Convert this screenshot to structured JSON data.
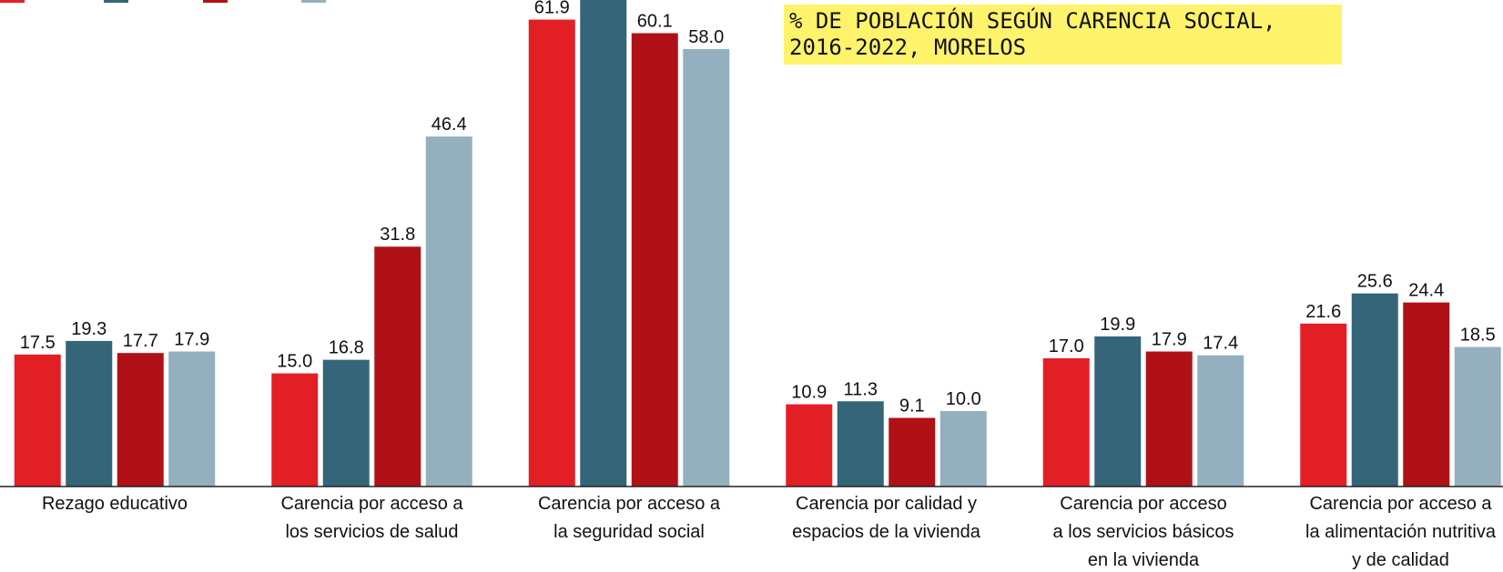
{
  "chart_data": {
    "type": "bar",
    "title": "% DE POBLACIÓN SEGÚN CARENCIA SOCIAL, 2016-2022, MORELOS",
    "categories": [
      [
        "Rezago educativo"
      ],
      [
        "Carencia por acceso a",
        "los servicios de salud"
      ],
      [
        "Carencia por acceso a",
        "la seguridad social"
      ],
      [
        "Carencia por calidad y",
        "espacios de la vivienda"
      ],
      [
        "Carencia por acceso",
        "a los servicios básicos",
        "en la vivienda"
      ],
      [
        "Carencia por acceso a",
        "la alimentación nutritiva",
        "y de calidad"
      ]
    ],
    "series": [
      {
        "color": "#e31f26",
        "values": [
          17.5,
          15,
          61.9,
          10.9,
          17,
          21.6
        ],
        "value_labels": [
          "17.5",
          "15.0",
          "61.9",
          "10.9",
          "17.0",
          "21.6"
        ]
      },
      {
        "color": "#346578",
        "values": [
          19.3,
          16.8,
          66,
          11.3,
          19.9,
          25.6
        ],
        "value_labels": [
          "19.3",
          "16.8",
          null,
          "11.3",
          "19.9",
          "25.6"
        ]
      },
      {
        "color": "#b01117",
        "values": [
          17.7,
          31.8,
          60.1,
          9.1,
          17.9,
          24.4
        ],
        "value_labels": [
          "17.7",
          "31.8",
          "60.1",
          "9.1",
          "17.9",
          "24.4"
        ]
      },
      {
        "color": "#94b0bf",
        "values": [
          17.9,
          46.4,
          58,
          10,
          17.4,
          18.5
        ],
        "value_labels": [
          "17.9",
          "46.4",
          "58.0",
          "10.0",
          "17.4",
          "18.5"
        ]
      }
    ],
    "ylim": [
      0,
      64.5
    ]
  }
}
